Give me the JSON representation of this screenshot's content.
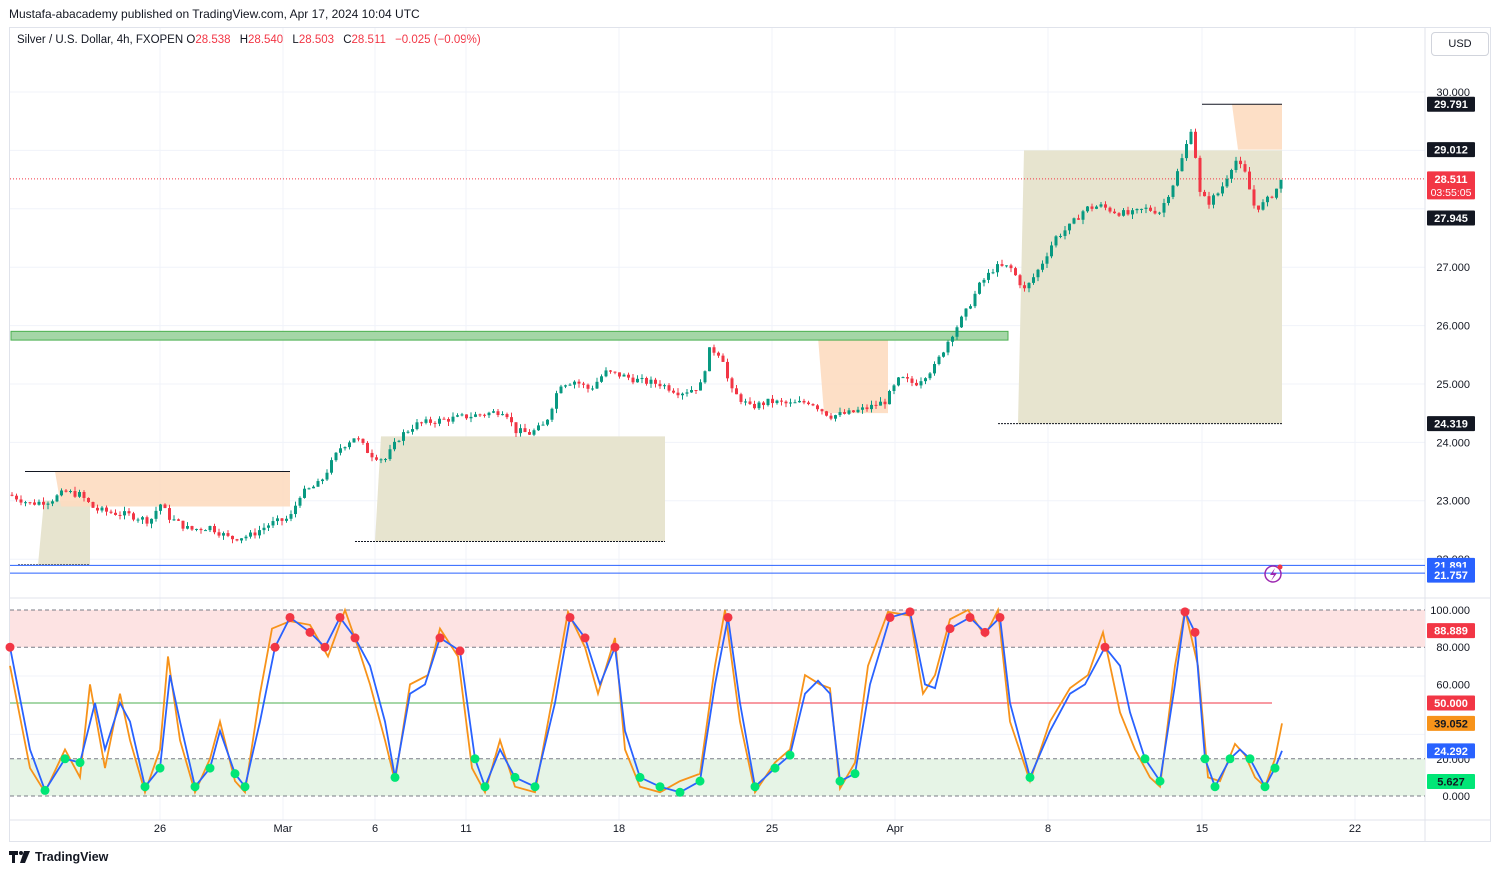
{
  "header": {
    "published": "Mustafa-abacademy published on TradingView.com, Apr 17, 2024 10:04 UTC"
  },
  "symbol": {
    "name": "Silver / U.S. Dollar, 4h, FXOPEN",
    "open_label": "O",
    "open": "28.538",
    "high_label": "H",
    "high": "28.540",
    "low_label": "L",
    "low": "28.503",
    "close_label": "C",
    "close": "28.511",
    "change": "−0.025 (−0.09%)"
  },
  "currency_button": "USD",
  "footer": {
    "brand": "TradingView",
    "logo_icon": "tradingview-logo-icon"
  },
  "colors": {
    "up": "#089981",
    "down": "#f23645",
    "k_line": "#2962ff",
    "d_line": "#f7931a",
    "zone": "#4caf50"
  },
  "chart_data": [
    {
      "type": "candlestick",
      "title": "Silver / U.S. Dollar, 4h, FXOPEN",
      "ylim": [
        21.6,
        30.3
      ],
      "y_ticks": [
        "30.000",
        "27.000",
        "26.000",
        "25.000",
        "24.000",
        "23.000",
        "22.000"
      ],
      "x_ticks": [
        "26",
        "Mar",
        "6",
        "11",
        "18",
        "25",
        "Apr",
        "8",
        "15",
        "22"
      ],
      "price_labels": [
        {
          "value": "29.791",
          "style": "black"
        },
        {
          "value": "29.012",
          "style": "black"
        },
        {
          "value": "28.511",
          "style": "red",
          "countdown": "03:55:05"
        },
        {
          "value": "27.945",
          "style": "black"
        },
        {
          "value": "24.319",
          "style": "black"
        },
        {
          "value": "21.891",
          "style": "blue"
        },
        {
          "value": "21.757",
          "style": "blue"
        }
      ],
      "horizontal_lines": [
        21.891,
        21.757
      ],
      "current_price": 28.511,
      "zone": {
        "low": 25.75,
        "high": 25.9,
        "color": "#4caf50"
      },
      "close_path": [
        [
          0,
          23.1
        ],
        [
          20,
          22.95
        ],
        [
          40,
          23.0
        ],
        [
          55,
          23.15
        ],
        [
          70,
          23.1
        ],
        [
          85,
          22.85
        ],
        [
          100,
          22.8
        ],
        [
          120,
          22.75
        ],
        [
          140,
          22.65
        ],
        [
          150,
          22.95
        ],
        [
          160,
          22.7
        ],
        [
          180,
          22.5
        ],
        [
          200,
          22.55
        ],
        [
          220,
          22.35
        ],
        [
          240,
          22.4
        ],
        [
          260,
          22.6
        ],
        [
          280,
          22.7
        ],
        [
          290,
          23.1
        ],
        [
          310,
          23.3
        ],
        [
          330,
          23.9
        ],
        [
          345,
          24.1
        ],
        [
          360,
          23.8
        ],
        [
          375,
          23.7
        ],
        [
          390,
          24.1
        ],
        [
          405,
          24.3
        ],
        [
          420,
          24.35
        ],
        [
          440,
          24.4
        ],
        [
          460,
          24.45
        ],
        [
          480,
          24.5
        ],
        [
          495,
          24.55
        ],
        [
          505,
          24.2
        ],
        [
          520,
          24.15
        ],
        [
          535,
          24.3
        ],
        [
          550,
          25.0
        ],
        [
          565,
          25.05
        ],
        [
          580,
          24.9
        ],
        [
          595,
          25.2
        ],
        [
          610,
          25.15
        ],
        [
          630,
          25.05
        ],
        [
          650,
          25.0
        ],
        [
          670,
          24.85
        ],
        [
          690,
          24.95
        ],
        [
          700,
          25.6
        ],
        [
          712,
          25.5
        ],
        [
          720,
          24.9
        ],
        [
          740,
          24.6
        ],
        [
          760,
          24.7
        ],
        [
          780,
          24.65
        ],
        [
          800,
          24.7
        ],
        [
          820,
          24.45
        ],
        [
          840,
          24.5
        ],
        [
          860,
          24.6
        ],
        [
          875,
          24.7
        ],
        [
          890,
          25.1
        ],
        [
          905,
          25.0
        ],
        [
          925,
          25.3
        ],
        [
          940,
          25.8
        ],
        [
          955,
          26.2
        ],
        [
          970,
          26.7
        ],
        [
          985,
          27.0
        ],
        [
          1000,
          27.0
        ],
        [
          1015,
          26.6
        ],
        [
          1030,
          27.0
        ],
        [
          1045,
          27.5
        ],
        [
          1060,
          27.7
        ],
        [
          1075,
          28.0
        ],
        [
          1090,
          28.05
        ],
        [
          1105,
          27.95
        ],
        [
          1120,
          27.9
        ],
        [
          1135,
          28.0
        ],
        [
          1150,
          27.95
        ],
        [
          1165,
          28.5
        ],
        [
          1175,
          29.0
        ],
        [
          1183,
          29.5
        ],
        [
          1188,
          28.3
        ],
        [
          1198,
          28.1
        ],
        [
          1210,
          28.3
        ],
        [
          1225,
          28.85
        ],
        [
          1235,
          28.6
        ],
        [
          1245,
          28.0
        ],
        [
          1255,
          28.1
        ],
        [
          1265,
          28.3
        ],
        [
          1272,
          28.5
        ]
      ],
      "supply_zones": [
        [
          45,
          280,
          23.5,
          22.9
        ],
        [
          808,
          878,
          25.8,
          24.5
        ],
        [
          1222,
          1272,
          29.791,
          29.012
        ]
      ],
      "demand_zones": [
        [
          28,
          80,
          23.0,
          21.9
        ],
        [
          365,
          655,
          24.1,
          22.3
        ],
        [
          1008,
          1272,
          29.0,
          24.319
        ]
      ]
    },
    {
      "type": "line",
      "title": "",
      "ylim": [
        0,
        100
      ],
      "y_ticks": [
        "100.000",
        "80.000",
        "60.000",
        "20.000",
        "0.000"
      ],
      "levels": {
        "overbought": 80,
        "oversold": 20,
        "middle": 50
      },
      "value_labels": [
        {
          "value": "88.889",
          "style": "red"
        },
        {
          "value": "50.000",
          "style": "red"
        },
        {
          "value": "39.052",
          "style": "orange"
        },
        {
          "value": "24.292",
          "style": "blue"
        },
        {
          "value": "5.627",
          "style": "green"
        }
      ],
      "series": [
        {
          "values": [
            [
              0,
              80
            ],
            [
              20,
              25
            ],
            [
              35,
              3
            ],
            [
              55,
              20
            ],
            [
              70,
              18
            ],
            [
              85,
              50
            ],
            [
              95,
              25
            ],
            [
              110,
              50
            ],
            [
              120,
              40
            ],
            [
              135,
              5
            ],
            [
              150,
              15
            ],
            [
              160,
              65
            ],
            [
              170,
              40
            ],
            [
              185,
              5
            ],
            [
              200,
              15
            ],
            [
              210,
              35
            ],
            [
              225,
              12
            ],
            [
              235,
              5
            ],
            [
              250,
              40
            ],
            [
              265,
              80
            ],
            [
              280,
              96
            ],
            [
              300,
              88
            ],
            [
              315,
              80
            ],
            [
              330,
              96
            ],
            [
              345,
              85
            ],
            [
              360,
              70
            ],
            [
              375,
              40
            ],
            [
              385,
              10
            ],
            [
              400,
              55
            ],
            [
              415,
              60
            ],
            [
              430,
              85
            ],
            [
              450,
              78
            ],
            [
              465,
              20
            ],
            [
              475,
              5
            ],
            [
              490,
              25
            ],
            [
              505,
              10
            ],
            [
              525,
              5
            ],
            [
              545,
              50
            ],
            [
              560,
              96
            ],
            [
              575,
              85
            ],
            [
              590,
              60
            ],
            [
              605,
              80
            ],
            [
              615,
              35
            ],
            [
              630,
              10
            ],
            [
              650,
              5
            ],
            [
              670,
              2
            ],
            [
              690,
              8
            ],
            [
              705,
              60
            ],
            [
              718,
              96
            ],
            [
              730,
              50
            ],
            [
              745,
              5
            ],
            [
              765,
              15
            ],
            [
              780,
              22
            ],
            [
              795,
              55
            ],
            [
              808,
              62
            ],
            [
              820,
              55
            ],
            [
              830,
              8
            ],
            [
              845,
              12
            ],
            [
              860,
              60
            ],
            [
              880,
              96
            ],
            [
              900,
              99
            ],
            [
              915,
              60
            ],
            [
              925,
              58
            ],
            [
              940,
              90
            ],
            [
              960,
              96
            ],
            [
              975,
              88
            ],
            [
              990,
              96
            ],
            [
              1000,
              50
            ],
            [
              1020,
              10
            ],
            [
              1040,
              35
            ],
            [
              1060,
              55
            ],
            [
              1075,
              60
            ],
            [
              1095,
              80
            ],
            [
              1110,
              70
            ],
            [
              1120,
              45
            ],
            [
              1135,
              20
            ],
            [
              1150,
              8
            ],
            [
              1165,
              60
            ],
            [
              1175,
              99
            ],
            [
              1185,
              88
            ],
            [
              1195,
              20
            ],
            [
              1205,
              5
            ],
            [
              1220,
              20
            ],
            [
              1230,
              25
            ],
            [
              1240,
              20
            ],
            [
              1255,
              5
            ],
            [
              1265,
              15
            ],
            [
              1272,
              24.292
            ]
          ]
        },
        {
          "values": [
            [
              0,
              70
            ],
            [
              20,
              15
            ],
            [
              35,
              2
            ],
            [
              55,
              25
            ],
            [
              70,
              10
            ],
            [
              80,
              60
            ],
            [
              95,
              15
            ],
            [
              110,
              55
            ],
            [
              120,
              30
            ],
            [
              135,
              2
            ],
            [
              150,
              25
            ],
            [
              158,
              75
            ],
            [
              170,
              30
            ],
            [
              185,
              2
            ],
            [
              200,
              20
            ],
            [
              210,
              40
            ],
            [
              225,
              8
            ],
            [
              235,
              2
            ],
            [
              250,
              55
            ],
            [
              262,
              90
            ],
            [
              280,
              94
            ],
            [
              300,
              92
            ],
            [
              318,
              75
            ],
            [
              335,
              100
            ],
            [
              348,
              80
            ],
            [
              360,
              60
            ],
            [
              375,
              30
            ],
            [
              385,
              8
            ],
            [
              400,
              60
            ],
            [
              418,
              65
            ],
            [
              430,
              90
            ],
            [
              448,
              75
            ],
            [
              462,
              15
            ],
            [
              475,
              2
            ],
            [
              490,
              30
            ],
            [
              505,
              5
            ],
            [
              525,
              2
            ],
            [
              545,
              60
            ],
            [
              558,
              99
            ],
            [
              575,
              80
            ],
            [
              588,
              55
            ],
            [
              605,
              85
            ],
            [
              615,
              25
            ],
            [
              630,
              5
            ],
            [
              650,
              2
            ],
            [
              670,
              8
            ],
            [
              690,
              12
            ],
            [
              705,
              70
            ],
            [
              715,
              100
            ],
            [
              730,
              40
            ],
            [
              745,
              2
            ],
            [
              765,
              18
            ],
            [
              780,
              25
            ],
            [
              795,
              65
            ],
            [
              810,
              60
            ],
            [
              820,
              58
            ],
            [
              830,
              4
            ],
            [
              845,
              18
            ],
            [
              858,
              70
            ],
            [
              878,
              99
            ],
            [
              900,
              97
            ],
            [
              913,
              55
            ],
            [
              925,
              65
            ],
            [
              940,
              95
            ],
            [
              958,
              100
            ],
            [
              975,
              86
            ],
            [
              988,
              100
            ],
            [
              1000,
              40
            ],
            [
              1020,
              8
            ],
            [
              1040,
              40
            ],
            [
              1060,
              58
            ],
            [
              1078,
              65
            ],
            [
              1093,
              88
            ],
            [
              1110,
              45
            ],
            [
              1125,
              25
            ],
            [
              1140,
              10
            ],
            [
              1150,
              5
            ],
            [
              1165,
              70
            ],
            [
              1175,
              100
            ],
            [
              1188,
              70
            ],
            [
              1198,
              10
            ],
            [
              1210,
              8
            ],
            [
              1225,
              28
            ],
            [
              1235,
              22
            ],
            [
              1245,
              10
            ],
            [
              1255,
              5
            ],
            [
              1265,
              20
            ],
            [
              1272,
              39.052
            ]
          ]
        }
      ]
    }
  ]
}
